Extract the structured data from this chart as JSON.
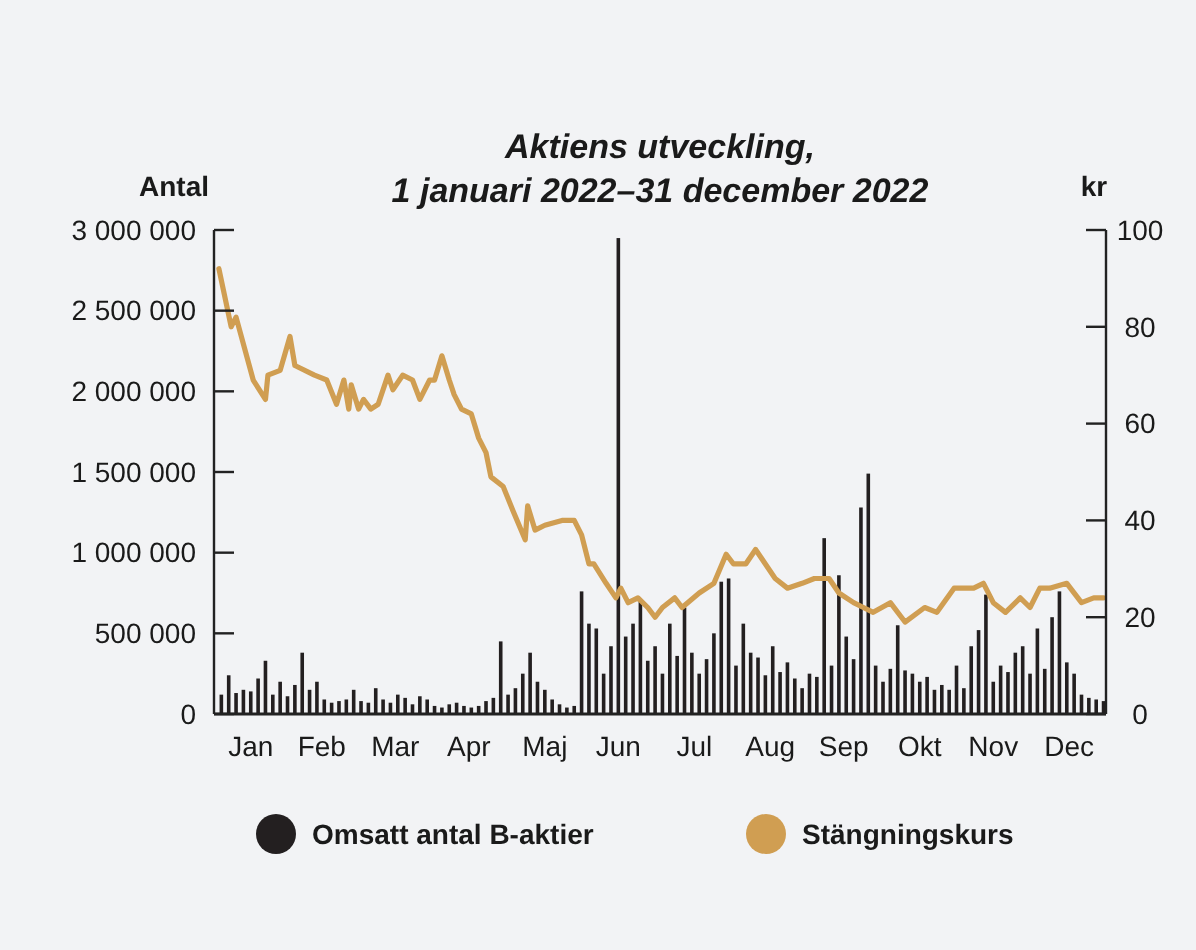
{
  "chart_data": {
    "type": "bar",
    "title": "Aktiens utveckling,\n1 januari 2022–31 december 2022",
    "ylabel": "Antal",
    "y2label": "kr",
    "x": [
      "2022-01-04",
      "2022-01-07",
      "2022-01-10",
      "2022-01-13",
      "2022-01-16",
      "2022-01-19",
      "2022-01-22",
      "2022-01-25",
      "2022-01-28",
      "2022-01-31",
      "2022-02-03",
      "2022-02-06",
      "2022-02-09",
      "2022-02-12",
      "2022-02-15",
      "2022-02-18",
      "2022-02-21",
      "2022-02-24",
      "2022-02-27",
      "2022-03-02",
      "2022-03-05",
      "2022-03-08",
      "2022-03-11",
      "2022-03-14",
      "2022-03-17",
      "2022-03-20",
      "2022-03-23",
      "2022-03-26",
      "2022-03-29",
      "2022-04-01",
      "2022-04-04",
      "2022-04-07",
      "2022-04-10",
      "2022-04-13",
      "2022-04-16",
      "2022-04-19",
      "2022-04-22",
      "2022-04-25",
      "2022-04-28",
      "2022-05-01",
      "2022-05-04",
      "2022-05-07",
      "2022-05-10",
      "2022-05-13",
      "2022-05-16",
      "2022-05-19",
      "2022-05-22",
      "2022-05-25",
      "2022-05-28",
      "2022-05-31",
      "2022-06-03",
      "2022-06-06",
      "2022-06-09",
      "2022-06-12",
      "2022-06-15",
      "2022-06-18",
      "2022-06-21",
      "2022-06-24",
      "2022-06-27",
      "2022-06-30",
      "2022-07-03",
      "2022-07-06",
      "2022-07-09",
      "2022-07-12",
      "2022-07-15",
      "2022-07-18",
      "2022-07-21",
      "2022-07-24",
      "2022-07-27",
      "2022-07-30",
      "2022-08-02",
      "2022-08-05",
      "2022-08-08",
      "2022-08-11",
      "2022-08-14",
      "2022-08-17",
      "2022-08-20",
      "2022-08-23",
      "2022-08-26",
      "2022-08-29",
      "2022-09-01",
      "2022-09-04",
      "2022-09-07",
      "2022-09-10",
      "2022-09-13",
      "2022-09-16",
      "2022-09-19",
      "2022-09-22",
      "2022-09-25",
      "2022-09-28",
      "2022-10-01",
      "2022-10-04",
      "2022-10-07",
      "2022-10-10",
      "2022-10-13",
      "2022-10-16",
      "2022-10-19",
      "2022-10-22",
      "2022-10-25",
      "2022-10-28",
      "2022-10-31",
      "2022-11-03",
      "2022-11-06",
      "2022-11-09",
      "2022-11-12",
      "2022-11-15",
      "2022-11-18",
      "2022-11-21",
      "2022-11-24",
      "2022-11-27",
      "2022-11-30",
      "2022-12-03",
      "2022-12-06",
      "2022-12-09",
      "2022-12-12",
      "2022-12-15",
      "2022-12-18",
      "2022-12-21",
      "2022-12-24",
      "2022-12-27",
      "2022-12-30"
    ],
    "series": [
      {
        "name": "Omsatt antal B-aktier",
        "color": "#231f20",
        "values": [
          120000,
          240000,
          130000,
          150000,
          140000,
          220000,
          330000,
          120000,
          200000,
          110000,
          180000,
          380000,
          150000,
          200000,
          90000,
          70000,
          80000,
          90000,
          150000,
          80000,
          70000,
          160000,
          90000,
          70000,
          120000,
          100000,
          60000,
          110000,
          90000,
          50000,
          40000,
          60000,
          70000,
          50000,
          40000,
          50000,
          80000,
          100000,
          450000,
          120000,
          160000,
          250000,
          380000,
          200000,
          150000,
          90000,
          60000,
          40000,
          50000,
          760000,
          560000,
          530000,
          250000,
          420000,
          2950000,
          480000,
          560000,
          700000,
          330000,
          420000,
          250000,
          560000,
          360000,
          660000,
          380000,
          250000,
          340000,
          500000,
          820000,
          840000,
          300000,
          560000,
          380000,
          350000,
          240000,
          420000,
          260000,
          320000,
          220000,
          160000,
          250000,
          230000,
          1090000,
          300000,
          860000,
          480000,
          340000,
          1280000,
          1490000,
          300000,
          200000,
          280000,
          550000,
          270000,
          250000,
          200000,
          230000,
          150000,
          180000,
          150000,
          300000,
          160000,
          420000,
          520000,
          740000,
          200000,
          300000,
          260000,
          380000,
          420000,
          250000,
          530000,
          280000,
          600000,
          760000,
          320000,
          250000,
          120000,
          100000,
          90000,
          80000
        ]
      },
      {
        "name": "Stängningskurs",
        "type": "line",
        "axis": "y2",
        "color": "#d09e52",
        "x": [
          "2022-01-03",
          "2022-01-08",
          "2022-01-10",
          "2022-01-17",
          "2022-01-22",
          "2022-01-23",
          "2022-01-28",
          "2022-02-01",
          "2022-02-03",
          "2022-02-11",
          "2022-02-16",
          "2022-02-20",
          "2022-02-23",
          "2022-02-25",
          "2022-02-26",
          "2022-03-01",
          "2022-03-03",
          "2022-03-06",
          "2022-03-09",
          "2022-03-13",
          "2022-03-15",
          "2022-03-19",
          "2022-03-23",
          "2022-03-26",
          "2022-03-30",
          "2022-04-01",
          "2022-04-04",
          "2022-04-07",
          "2022-04-09",
          "2022-04-12",
          "2022-04-16",
          "2022-04-19",
          "2022-04-22",
          "2022-04-24",
          "2022-04-29",
          "2022-05-03",
          "2022-05-08",
          "2022-05-09",
          "2022-05-12",
          "2022-05-16",
          "2022-05-23",
          "2022-05-28",
          "2022-05-31",
          "2022-06-03",
          "2022-06-05",
          "2022-06-10",
          "2022-06-14",
          "2022-06-16",
          "2022-06-19",
          "2022-06-23",
          "2022-06-27",
          "2022-06-30",
          "2022-07-03",
          "2022-07-08",
          "2022-07-11",
          "2022-07-18",
          "2022-07-24",
          "2022-07-29",
          "2022-08-01",
          "2022-08-06",
          "2022-08-10",
          "2022-08-14",
          "2022-08-18",
          "2022-08-23",
          "2022-08-29",
          "2022-09-03",
          "2022-09-09",
          "2022-09-13",
          "2022-09-19",
          "2022-09-23",
          "2022-09-27",
          "2022-10-04",
          "2022-10-10",
          "2022-10-18",
          "2022-10-23",
          "2022-10-30",
          "2022-11-07",
          "2022-11-11",
          "2022-11-15",
          "2022-11-20",
          "2022-11-26",
          "2022-11-30",
          "2022-12-04",
          "2022-12-08",
          "2022-12-15",
          "2022-12-21",
          "2022-12-26",
          "2022-12-30"
        ],
        "values": [
          92,
          80,
          82,
          69,
          65,
          70,
          71,
          78,
          72,
          70,
          69,
          64,
          69,
          63,
          68,
          63,
          65,
          63,
          64,
          70,
          67,
          70,
          69,
          65,
          69,
          69,
          74,
          69,
          66,
          63,
          62,
          57,
          54,
          49,
          47,
          42,
          36,
          43,
          38,
          39,
          40,
          40,
          37,
          31,
          31,
          27,
          24,
          26,
          23,
          24,
          22,
          20,
          22,
          24,
          22,
          25,
          27,
          33,
          31,
          31,
          34,
          31,
          28,
          26,
          27,
          28,
          28,
          25,
          23,
          22,
          21,
          23,
          19,
          22,
          21,
          26,
          26,
          27,
          23,
          21,
          24,
          22,
          26,
          26,
          27,
          23,
          24,
          24
        ]
      }
    ],
    "xlim": [
      "2022-01-01",
      "2022-12-31"
    ],
    "xticks": [
      {
        "value": "2022-01-16",
        "label": "Jan"
      },
      {
        "value": "2022-02-14",
        "label": "Feb"
      },
      {
        "value": "2022-03-16",
        "label": "Mar"
      },
      {
        "value": "2022-04-15",
        "label": "Apr"
      },
      {
        "value": "2022-05-16",
        "label": "Maj"
      },
      {
        "value": "2022-06-15",
        "label": "Jun"
      },
      {
        "value": "2022-07-16",
        "label": "Jul"
      },
      {
        "value": "2022-08-16",
        "label": "Aug"
      },
      {
        "value": "2022-09-15",
        "label": "Sep"
      },
      {
        "value": "2022-10-16",
        "label": "Okt"
      },
      {
        "value": "2022-11-15",
        "label": "Nov"
      },
      {
        "value": "2022-12-16",
        "label": "Dec"
      }
    ],
    "ylim": [
      0,
      3000000
    ],
    "yticks": [
      {
        "value": 0,
        "label": "0"
      },
      {
        "value": 500000,
        "label": "500 000"
      },
      {
        "value": 1000000,
        "label": "1 000 000"
      },
      {
        "value": 1500000,
        "label": "1 500 000"
      },
      {
        "value": 2000000,
        "label": "2 000 000"
      },
      {
        "value": 2500000,
        "label": "2 500 000"
      },
      {
        "value": 3000000,
        "label": "3 000 000"
      }
    ],
    "y2lim": [
      0,
      100
    ],
    "y2ticks": [
      0,
      20,
      40,
      60,
      80,
      100
    ],
    "legend": "bottom",
    "grid": false
  }
}
